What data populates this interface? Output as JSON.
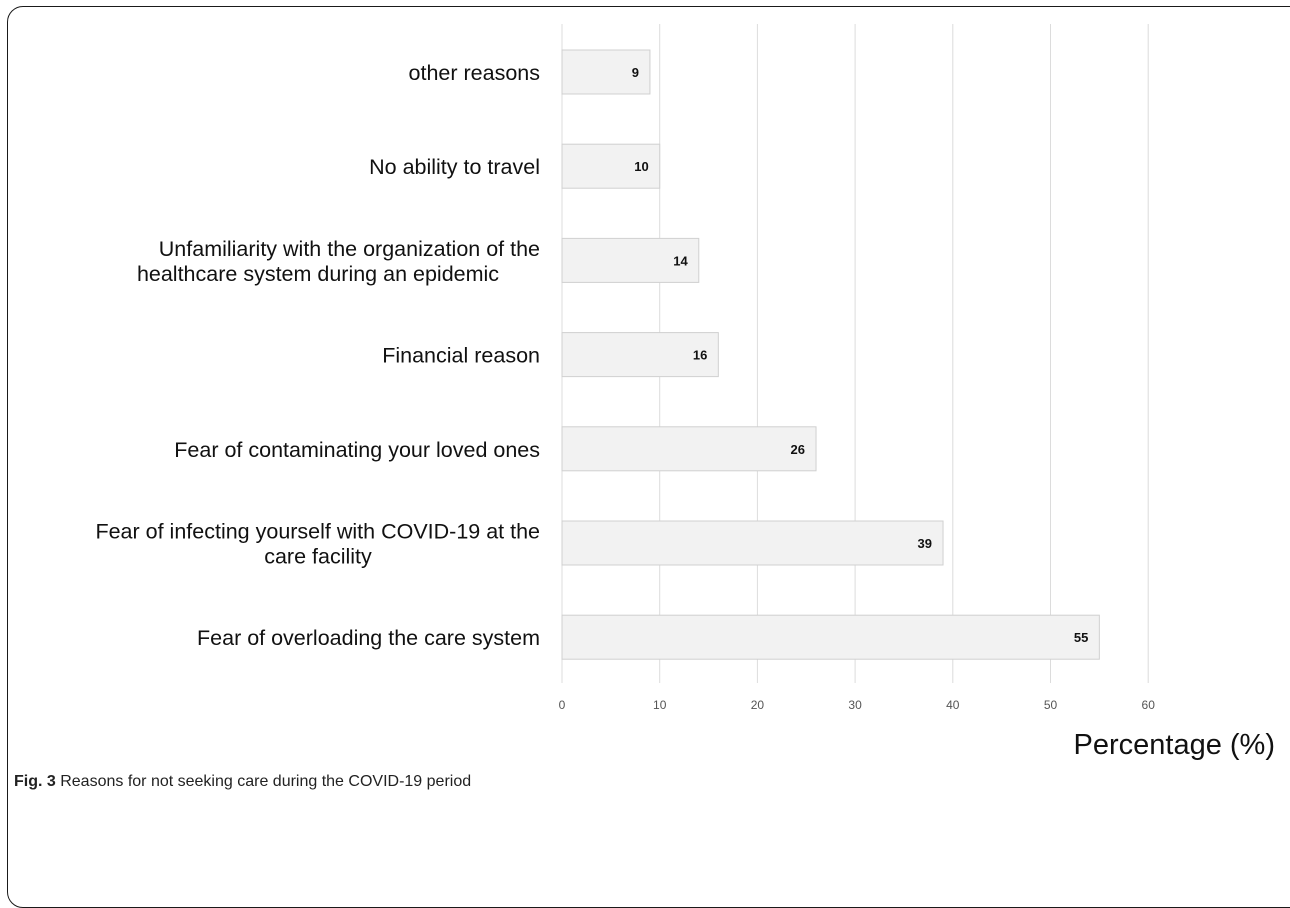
{
  "chart_data": {
    "type": "bar",
    "orientation": "horizontal",
    "categories": [
      [
        "other reasons"
      ],
      [
        "No ability to travel"
      ],
      [
        "Unfamiliarity with the organization of the",
        "healthcare system during an epidemic"
      ],
      [
        "Financial reason"
      ],
      [
        "Fear of contaminating your loved ones"
      ],
      [
        "Fear of infecting yourself with COVID-19 at the",
        "care facility"
      ],
      [
        "Fear of overloading the care system"
      ]
    ],
    "values": [
      9,
      10,
      14,
      16,
      26,
      39,
      55
    ],
    "xlabel": "Percentage (%)",
    "ylabel": "",
    "xlim": [
      0,
      60
    ],
    "xticks": [
      0,
      10,
      20,
      30,
      40,
      50,
      60
    ],
    "grid": "vertical",
    "legend": "none",
    "colors": {
      "bar_fill": "#f2f2f2",
      "bar_stroke": "#d0d0d0",
      "grid": "#dcdcdc"
    }
  },
  "caption": {
    "figure_label": "Fig. 3",
    "text": " Reasons for not seeking care during the COVID-19 period"
  }
}
